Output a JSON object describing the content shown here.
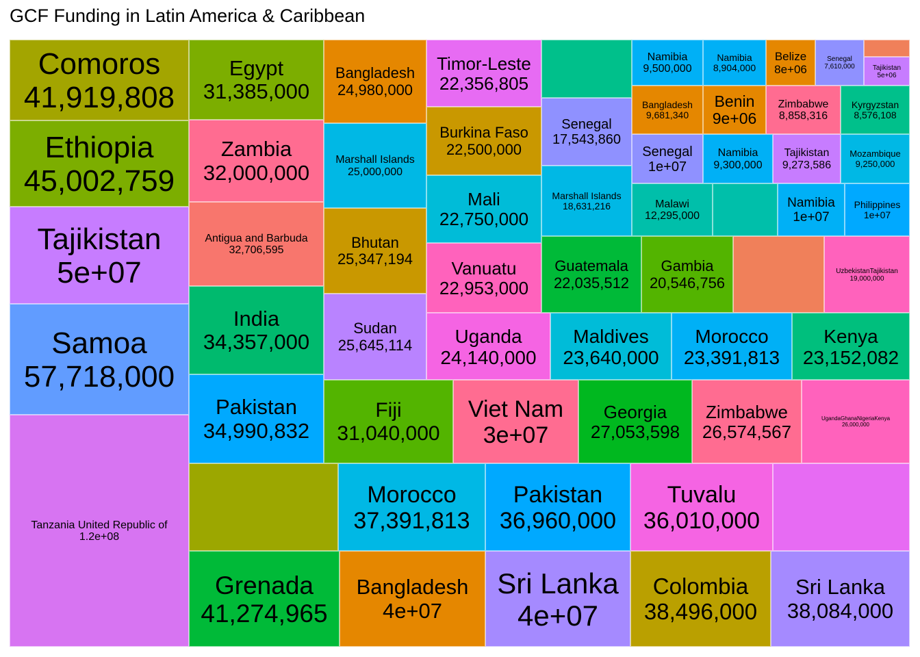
{
  "title": "GCF Funding in Latin America & Caribbean",
  "chart_data": {
    "type": "treemap",
    "title": "GCF Funding in Latin America & Caribbean",
    "tiles": [
      {
        "label": "Comoros",
        "value_text": "41,919,808",
        "value": 41919808,
        "color": "#A3A500"
      },
      {
        "label": "Ethiopia",
        "value_text": "45,002,759",
        "value": 45002759,
        "color": "#7CAE00"
      },
      {
        "label": "Tajikistan",
        "value_text": "5e+07",
        "value": 50000000,
        "color": "#C77CFF"
      },
      {
        "label": "Samoa",
        "value_text": "57,718,000",
        "value": 57718000,
        "color": "#619CFF"
      },
      {
        "label": "Tanzania United Republic of",
        "value_text": "1.2e+08",
        "value": 120000000,
        "color": "#D774F2"
      },
      {
        "label": "Egypt",
        "value_text": "31,385,000",
        "value": 31385000,
        "color": "#7CAE00"
      },
      {
        "label": "Zambia",
        "value_text": "32,000,000",
        "value": 32000000,
        "color": "#FF6C91"
      },
      {
        "label": "Antigua and Barbuda",
        "value_text": "32,706,595",
        "value": 32706595,
        "color": "#F8766D"
      },
      {
        "label": "India",
        "value_text": "34,357,000",
        "value": 34357000,
        "color": "#00BA6E"
      },
      {
        "label": "Pakistan",
        "value_text": "34,990,832",
        "value": 34990832,
        "color": "#00A9FF"
      },
      {
        "label": "Bangladesh",
        "value_text": "24,980,000",
        "value": 24980000,
        "color": "#E58700"
      },
      {
        "label": "Marshall Islands",
        "value_text": "25,000,000",
        "value": 25000000,
        "color": "#00B8E5"
      },
      {
        "label": "Bhutan",
        "value_text": "25,347,194",
        "value": 25347194,
        "color": "#C99800"
      },
      {
        "label": "Sudan",
        "value_text": "25,645,114",
        "value": 25645114,
        "color": "#B983FF"
      },
      {
        "label": "Timor-Leste",
        "value_text": "22,356,805",
        "value": 22356805,
        "color": "#E76BF3"
      },
      {
        "label": "Burkina Faso",
        "value_text": "22,500,000",
        "value": 22500000,
        "color": "#C99800"
      },
      {
        "label": "Mali",
        "value_text": "22,750,000",
        "value": 22750000,
        "color": "#00BCD8"
      },
      {
        "label": "Vanuatu",
        "value_text": "22,953,000",
        "value": 22953000,
        "color": "#FF62BC"
      },
      {
        "label": "",
        "value_text": "",
        "value": null,
        "color": "#00C08B"
      },
      {
        "label": "Senegal",
        "value_text": "17,543,860",
        "value": 17543860,
        "color": "#8F91FF"
      },
      {
        "label": "Marshall Islands",
        "value_text": "18,631,216",
        "value": 18631216,
        "color": "#00B8E5"
      },
      {
        "label": "Namibia",
        "value_text": "9,500,000",
        "value": 9500000,
        "color": "#00B0F6"
      },
      {
        "label": "Namibia",
        "value_text": "8,904,000",
        "value": 8904000,
        "color": "#00B0F6"
      },
      {
        "label": "Belize",
        "value_text": "8e+06",
        "value": 8000000,
        "color": "#E58700"
      },
      {
        "label": "Senegal",
        "value_text": "7,610,000",
        "value": 7610000,
        "color": "#8F91FF"
      },
      {
        "label": "",
        "value_text": "",
        "value": null,
        "color": "#F0805A"
      },
      {
        "label": "Tajikistan",
        "value_text": "5e+06",
        "value": 5000000,
        "color": "#C77CFF"
      },
      {
        "label": "Bangladesh",
        "value_text": "9,681,340",
        "value": 9681340,
        "color": "#E58700"
      },
      {
        "label": "Benin",
        "value_text": "9e+06",
        "value": 9000000,
        "color": "#E58700"
      },
      {
        "label": "Zimbabwe",
        "value_text": "8,858,316",
        "value": 8858316,
        "color": "#FF6C91"
      },
      {
        "label": "Kyrgyzstan",
        "value_text": "8,576,108",
        "value": 8576108,
        "color": "#00C08B"
      },
      {
        "label": "Senegal",
        "value_text": "1e+07",
        "value": 10000000,
        "color": "#8F91FF"
      },
      {
        "label": "Namibia",
        "value_text": "9,300,000",
        "value": 9300000,
        "color": "#00B0F6"
      },
      {
        "label": "Tajikistan",
        "value_text": "9,273,586",
        "value": 9273586,
        "color": "#C77CFF"
      },
      {
        "label": "Mozambique",
        "value_text": "9,250,000",
        "value": 9250000,
        "color": "#00B8E5"
      },
      {
        "label": "Malawi",
        "value_text": "12,295,000",
        "value": 12295000,
        "color": "#00BFAA"
      },
      {
        "label": "",
        "value_text": "",
        "value": null,
        "color": "#00BFAA"
      },
      {
        "label": "Namibia",
        "value_text": "1e+07",
        "value": 10000000,
        "color": "#00B0F6"
      },
      {
        "label": "Philippines",
        "value_text": "1e+07",
        "value": 10000000,
        "color": "#00A9FF"
      },
      {
        "label": "Guatemala",
        "value_text": "22,035,512",
        "value": 22035512,
        "color": "#00BA38"
      },
      {
        "label": "Gambia",
        "value_text": "20,546,756",
        "value": 20546756,
        "color": "#53B400"
      },
      {
        "label": "",
        "value_text": "",
        "value": null,
        "color": "#F0805A"
      },
      {
        "label": "UzbekistanTajikistan",
        "value_text": "19,000,000",
        "value": 19000000,
        "color": "#FF62BC"
      },
      {
        "label": "Uganda",
        "value_text": "24,140,000",
        "value": 24140000,
        "color": "#F564E3"
      },
      {
        "label": "Maldives",
        "value_text": "23,640,000",
        "value": 23640000,
        "color": "#00BCD8"
      },
      {
        "label": "Morocco",
        "value_text": "23,391,813",
        "value": 23391813,
        "color": "#00B0F6"
      },
      {
        "label": "Kenya",
        "value_text": "23,152,082",
        "value": 23152082,
        "color": "#00BF7D"
      },
      {
        "label": "Fiji",
        "value_text": "31,040,000",
        "value": 31040000,
        "color": "#53B400"
      },
      {
        "label": "Viet Nam",
        "value_text": "3e+07",
        "value": 30000000,
        "color": "#FF6C91"
      },
      {
        "label": "Georgia",
        "value_text": "27,053,598",
        "value": 27053598,
        "color": "#00B81F"
      },
      {
        "label": "Zimbabwe",
        "value_text": "26,574,567",
        "value": 26574567,
        "color": "#FF6C91"
      },
      {
        "label": "UgandaGhanaNigeriaKenya",
        "value_text": "26,000,000",
        "value": 26000000,
        "color": "#FF62BC"
      },
      {
        "label": "",
        "value_text": "",
        "value": null,
        "color": "#9CA700"
      },
      {
        "label": "Morocco",
        "value_text": "37,391,813",
        "value": 37391813,
        "color": "#00B8E5"
      },
      {
        "label": "Pakistan",
        "value_text": "36,960,000",
        "value": 36960000,
        "color": "#00A9FF"
      },
      {
        "label": "Tuvalu",
        "value_text": "36,010,000",
        "value": 36010000,
        "color": "#F564E3"
      },
      {
        "label": "",
        "value_text": "",
        "value": null,
        "color": "#E76BF3"
      },
      {
        "label": "Grenada",
        "value_text": "41,274,965",
        "value": 41274965,
        "color": "#00BA38"
      },
      {
        "label": "Bangladesh",
        "value_text": "4e+07",
        "value": 40000000,
        "color": "#E58700"
      },
      {
        "label": "Sri Lanka",
        "value_text": "4e+07",
        "value": 40000000,
        "color": "#A58AFF"
      },
      {
        "label": "Colombia",
        "value_text": "38,496,000",
        "value": 38496000,
        "color": "#BAA000"
      },
      {
        "label": "Sri Lanka",
        "value_text": "38,084,000",
        "value": 38084000,
        "color": "#A58AFF"
      }
    ]
  }
}
